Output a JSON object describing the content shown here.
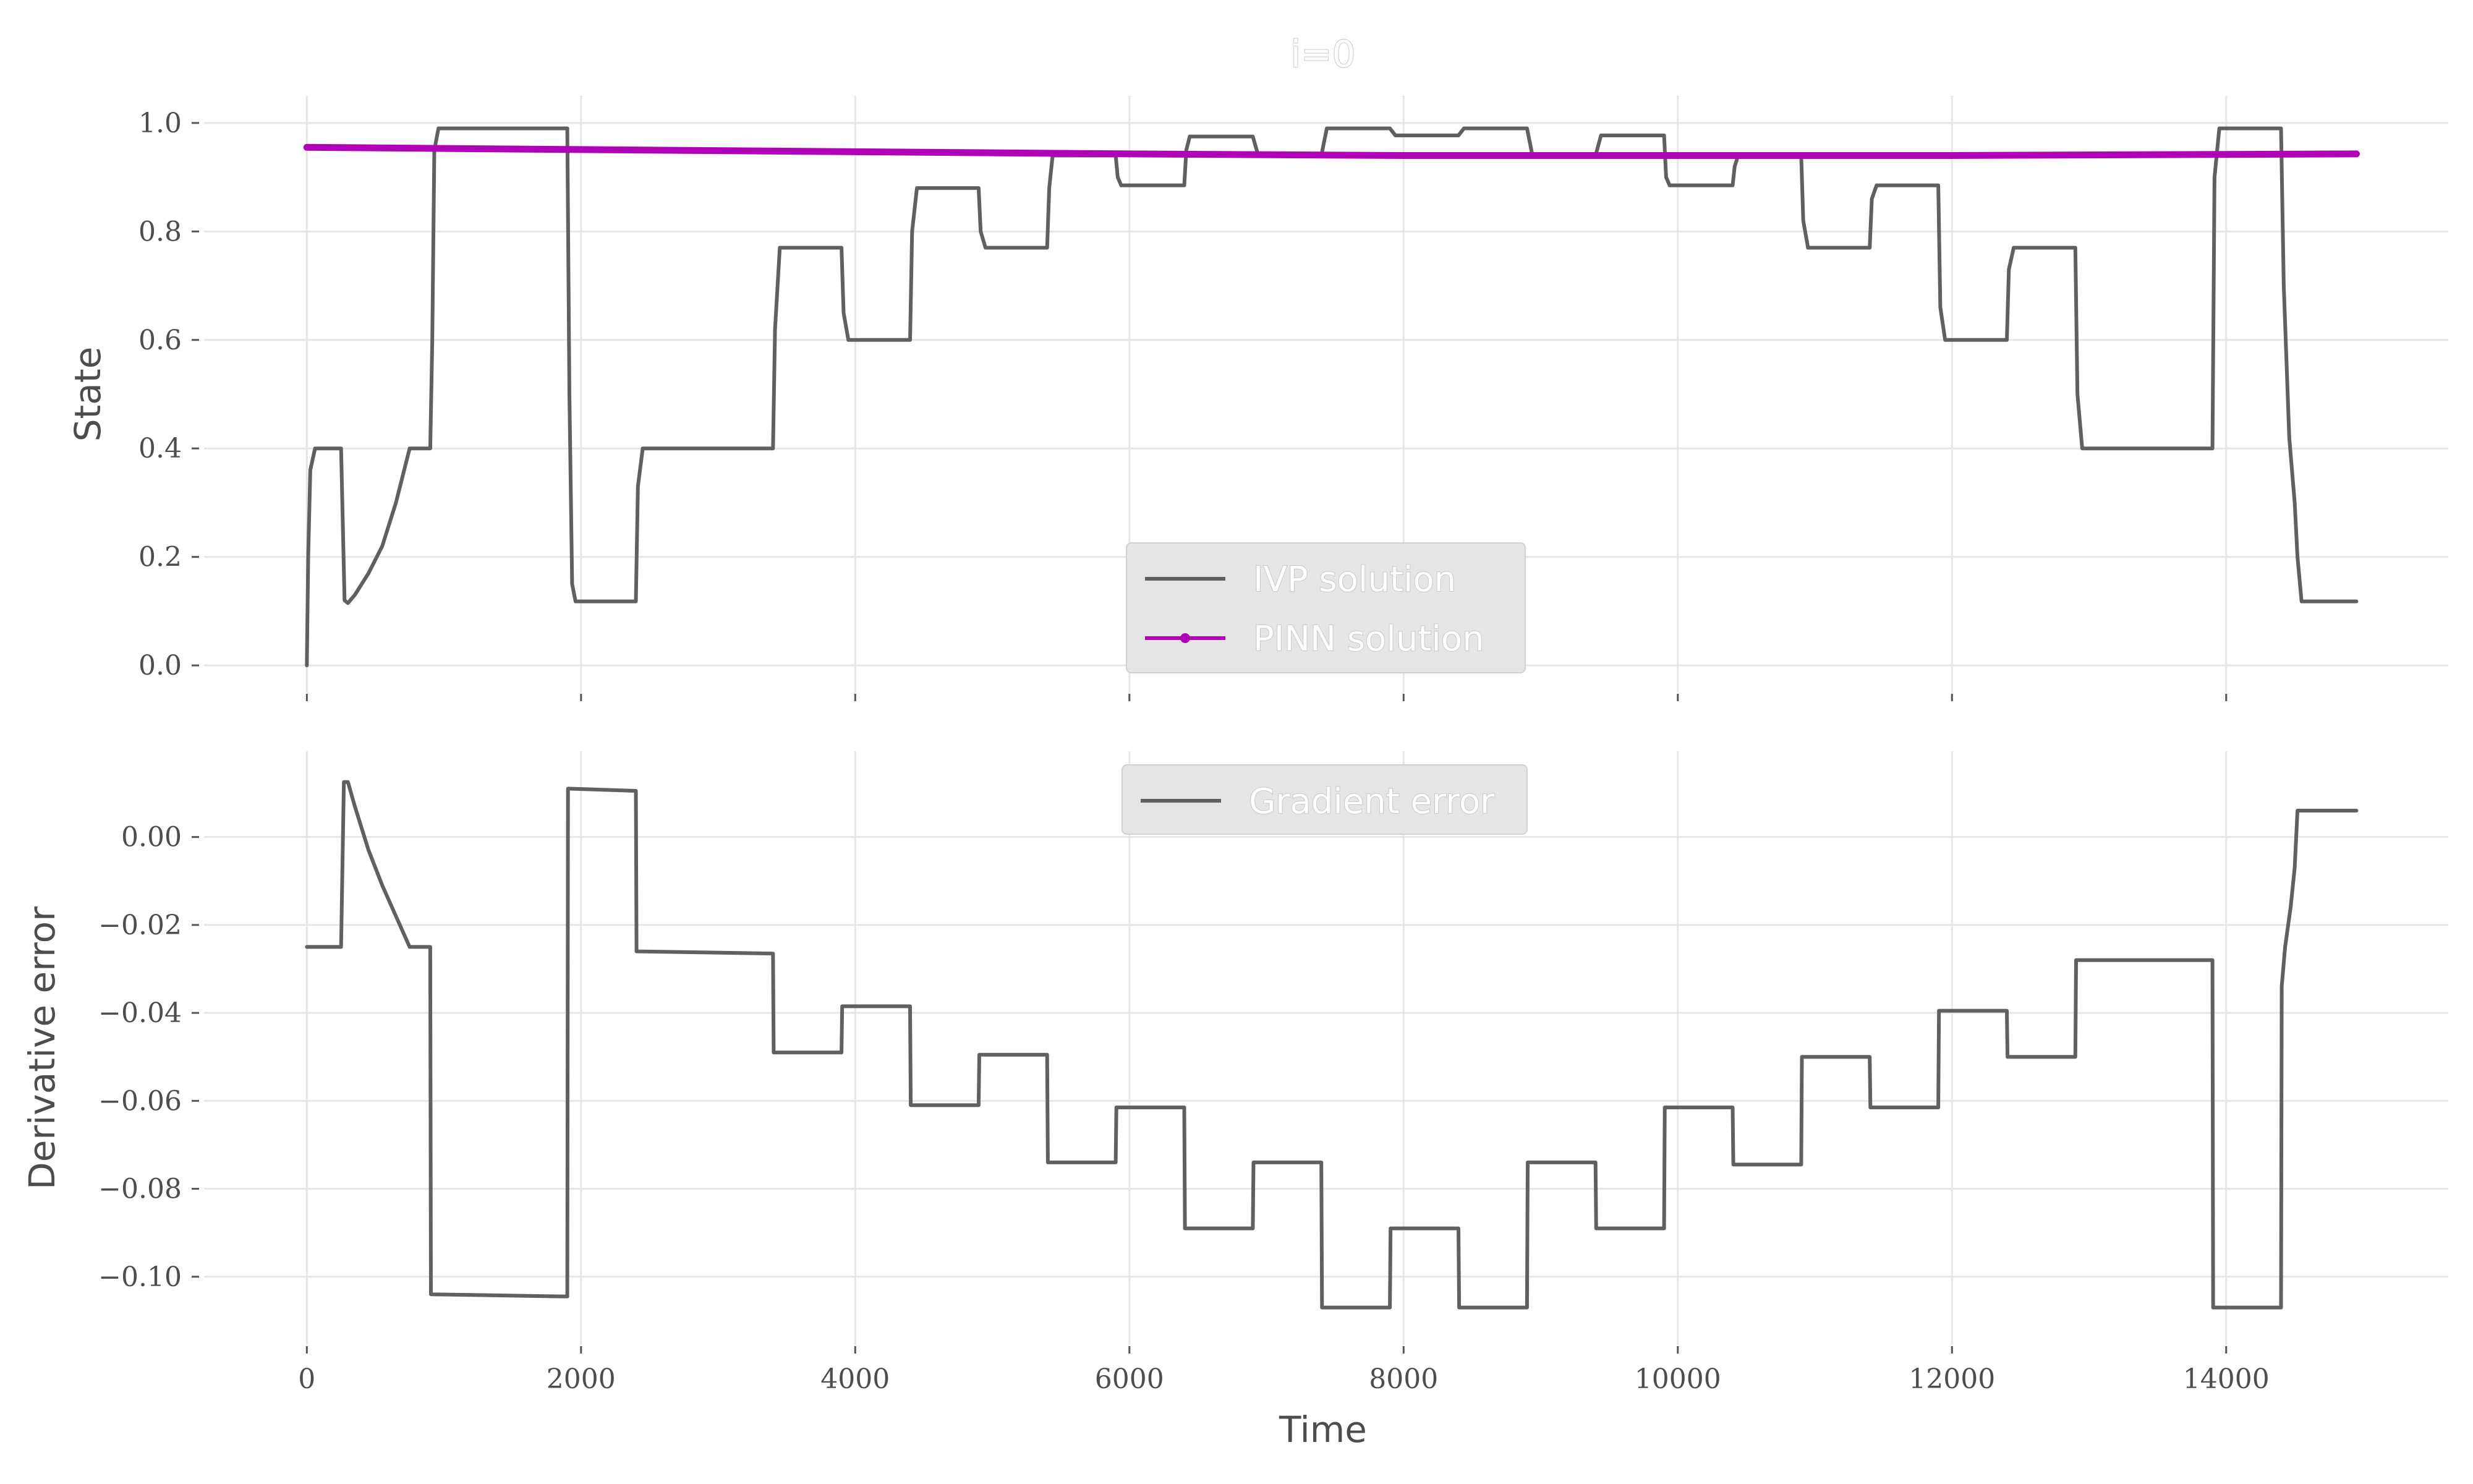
{
  "figure_title": "i=0",
  "xlabel": "Time",
  "chart_data": [
    {
      "type": "line",
      "ylabel": "State",
      "xlim": [
        -750,
        15620
      ],
      "ylim": [
        -0.05,
        1.05
      ],
      "xticks": [
        0,
        2000,
        4000,
        6000,
        8000,
        10000,
        12000,
        14000
      ],
      "show_xtick_labels": false,
      "yticks": [
        0.0,
        0.2,
        0.4,
        0.6,
        0.8,
        1.0
      ],
      "ytick_labels": [
        "0.0",
        "0.2",
        "0.4",
        "0.6",
        "0.8",
        "1.0"
      ],
      "grid": true,
      "legend_placement": "lower-center",
      "series": [
        {
          "name": "IVP solution",
          "color": "#606060",
          "marker": false,
          "points": [
            [
              0,
              0.0
            ],
            [
              10,
              0.2
            ],
            [
              25,
              0.36
            ],
            [
              60,
              0.4
            ],
            [
              250,
              0.4
            ],
            [
              275,
              0.12
            ],
            [
              300,
              0.115
            ],
            [
              350,
              0.13
            ],
            [
              450,
              0.17
            ],
            [
              550,
              0.22
            ],
            [
              650,
              0.3
            ],
            [
              700,
              0.35
            ],
            [
              750,
              0.4
            ],
            [
              900,
              0.4
            ],
            [
              915,
              0.6
            ],
            [
              930,
              0.95
            ],
            [
              960,
              0.99
            ],
            [
              1900,
              0.99
            ],
            [
              1915,
              0.5
            ],
            [
              1935,
              0.15
            ],
            [
              1960,
              0.118
            ],
            [
              2400,
              0.118
            ],
            [
              2415,
              0.33
            ],
            [
              2450,
              0.4
            ],
            [
              3400,
              0.4
            ],
            [
              3415,
              0.62
            ],
            [
              3450,
              0.77
            ],
            [
              3900,
              0.77
            ],
            [
              3915,
              0.65
            ],
            [
              3950,
              0.6
            ],
            [
              4400,
              0.6
            ],
            [
              4415,
              0.8
            ],
            [
              4450,
              0.88
            ],
            [
              4900,
              0.88
            ],
            [
              4915,
              0.8
            ],
            [
              4950,
              0.77
            ],
            [
              5400,
              0.77
            ],
            [
              5415,
              0.88
            ],
            [
              5440,
              0.94
            ],
            [
              5900,
              0.94
            ],
            [
              5915,
              0.9
            ],
            [
              5940,
              0.885
            ],
            [
              6400,
              0.885
            ],
            [
              6415,
              0.95
            ],
            [
              6440,
              0.975
            ],
            [
              6900,
              0.975
            ],
            [
              6940,
              0.94
            ],
            [
              7400,
              0.94
            ],
            [
              7440,
              0.99
            ],
            [
              7900,
              0.99
            ],
            [
              7940,
              0.977
            ],
            [
              8400,
              0.977
            ],
            [
              8440,
              0.99
            ],
            [
              8900,
              0.99
            ],
            [
              8940,
              0.94
            ],
            [
              9400,
              0.94
            ],
            [
              9440,
              0.977
            ],
            [
              9900,
              0.977
            ],
            [
              9915,
              0.9
            ],
            [
              9940,
              0.885
            ],
            [
              10400,
              0.885
            ],
            [
              10415,
              0.92
            ],
            [
              10440,
              0.94
            ],
            [
              10900,
              0.94
            ],
            [
              10915,
              0.82
            ],
            [
              10950,
              0.77
            ],
            [
              11400,
              0.77
            ],
            [
              11415,
              0.86
            ],
            [
              11450,
              0.885
            ],
            [
              11900,
              0.885
            ],
            [
              11915,
              0.66
            ],
            [
              11950,
              0.6
            ],
            [
              12400,
              0.6
            ],
            [
              12415,
              0.73
            ],
            [
              12450,
              0.77
            ],
            [
              12900,
              0.77
            ],
            [
              12915,
              0.5
            ],
            [
              12950,
              0.4
            ],
            [
              13900,
              0.4
            ],
            [
              13915,
              0.9
            ],
            [
              13950,
              0.99
            ],
            [
              14400,
              0.99
            ],
            [
              14420,
              0.7
            ],
            [
              14460,
              0.42
            ],
            [
              14500,
              0.3
            ],
            [
              14520,
              0.2
            ],
            [
              14550,
              0.118
            ],
            [
              14950,
              0.118
            ]
          ]
        },
        {
          "name": "PINN solution",
          "color": "#b000b8",
          "marker": true,
          "points": [
            [
              0,
              0.955
            ],
            [
              2000,
              0.951
            ],
            [
              4000,
              0.947
            ],
            [
              6000,
              0.943
            ],
            [
              8000,
              0.94
            ],
            [
              10000,
              0.94
            ],
            [
              12000,
              0.94
            ],
            [
              14000,
              0.942
            ],
            [
              14950,
              0.943
            ]
          ]
        }
      ]
    },
    {
      "type": "line",
      "ylabel": "Derivative error",
      "xlim": [
        -750,
        15620
      ],
      "ylim": [
        -0.1155,
        0.0195
      ],
      "xticks": [
        0,
        2000,
        4000,
        6000,
        8000,
        10000,
        12000,
        14000
      ],
      "xtick_labels": [
        "0",
        "2000",
        "4000",
        "6000",
        "8000",
        "10000",
        "12000",
        "14000"
      ],
      "yticks": [
        0.0,
        -0.02,
        -0.04,
        -0.06,
        -0.08,
        -0.1
      ],
      "ytick_labels": [
        "0.00",
        "−0.02",
        "−0.04",
        "−0.06",
        "−0.08",
        "−0.10"
      ],
      "grid": true,
      "legend_placement": "upper-center",
      "series": [
        {
          "name": "Gradient error",
          "color": "#606060",
          "marker": false,
          "points": [
            [
              0,
              -0.025
            ],
            [
              250,
              -0.025
            ],
            [
              270,
              0.0125
            ],
            [
              300,
              0.0125
            ],
            [
              350,
              0.007
            ],
            [
              450,
              -0.003
            ],
            [
              550,
              -0.011
            ],
            [
              650,
              -0.018
            ],
            [
              750,
              -0.025
            ],
            [
              900,
              -0.025
            ],
            [
              905,
              -0.104
            ],
            [
              1900,
              -0.1045
            ],
            [
              1905,
              0.011
            ],
            [
              2400,
              0.0105
            ],
            [
              2405,
              -0.026
            ],
            [
              3400,
              -0.0265
            ],
            [
              3405,
              -0.049
            ],
            [
              3900,
              -0.049
            ],
            [
              3905,
              -0.0385
            ],
            [
              4400,
              -0.0385
            ],
            [
              4405,
              -0.061
            ],
            [
              4900,
              -0.061
            ],
            [
              4905,
              -0.0495
            ],
            [
              5400,
              -0.0495
            ],
            [
              5405,
              -0.074
            ],
            [
              5900,
              -0.074
            ],
            [
              5905,
              -0.0615
            ],
            [
              6400,
              -0.0615
            ],
            [
              6405,
              -0.089
            ],
            [
              6900,
              -0.089
            ],
            [
              6905,
              -0.074
            ],
            [
              7400,
              -0.074
            ],
            [
              7405,
              -0.107
            ],
            [
              7900,
              -0.107
            ],
            [
              7905,
              -0.089
            ],
            [
              8400,
              -0.089
            ],
            [
              8405,
              -0.107
            ],
            [
              8900,
              -0.107
            ],
            [
              8905,
              -0.074
            ],
            [
              9400,
              -0.074
            ],
            [
              9405,
              -0.089
            ],
            [
              9900,
              -0.089
            ],
            [
              9905,
              -0.0615
            ],
            [
              10400,
              -0.0615
            ],
            [
              10405,
              -0.0745
            ],
            [
              10900,
              -0.0745
            ],
            [
              10905,
              -0.05
            ],
            [
              11400,
              -0.05
            ],
            [
              11405,
              -0.0615
            ],
            [
              11900,
              -0.0615
            ],
            [
              11905,
              -0.0395
            ],
            [
              12400,
              -0.0395
            ],
            [
              12405,
              -0.05
            ],
            [
              12900,
              -0.05
            ],
            [
              12905,
              -0.028
            ],
            [
              13900,
              -0.028
            ],
            [
              13905,
              -0.107
            ],
            [
              14400,
              -0.107
            ],
            [
              14405,
              -0.034
            ],
            [
              14430,
              -0.025
            ],
            [
              14470,
              -0.016
            ],
            [
              14500,
              -0.007
            ],
            [
              14520,
              0.006
            ],
            [
              14950,
              0.006
            ]
          ]
        }
      ]
    }
  ]
}
